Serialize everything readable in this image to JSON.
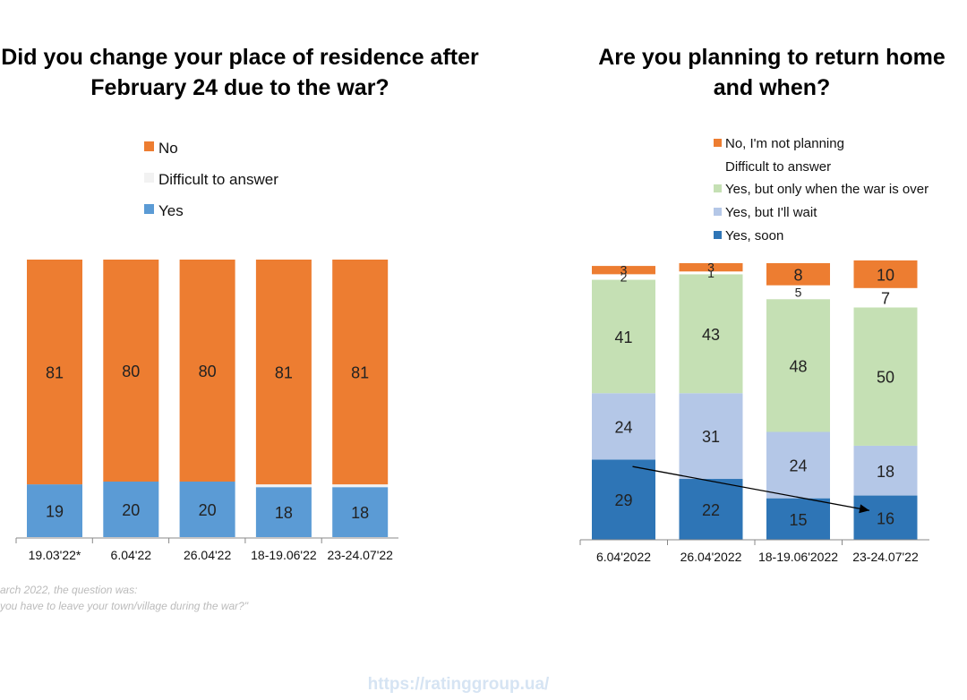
{
  "colors": {
    "no": "#ED7D31",
    "difficult": "#F2F2F2",
    "yes": "#5B9BD5",
    "not_planning": "#ED7D31",
    "difficult_right": "#FFFFFF",
    "after_war": "#C5E0B4",
    "wait": "#B4C7E7",
    "soon": "#2E75B6"
  },
  "footnote": {
    "line1": "arch 2022, the question was:",
    "line2": "you have to leave your town/village during the war?\""
  },
  "source": "https://ratinggroup.ua/",
  "chart_data": [
    {
      "type": "bar",
      "stacked": true,
      "title_lines": [
        "Did you change your place of residence after",
        "February 24 due to the war?"
      ],
      "categories": [
        "19.03'22*",
        "6.04'22",
        "26.04'22",
        "18-19.06'22",
        "23-24.07'22"
      ],
      "legend_order": [
        "No",
        "Difficult to answer",
        "Yes"
      ],
      "series": [
        {
          "name": "Yes",
          "values": [
            19,
            20,
            20,
            18,
            18
          ],
          "labels": [
            "19",
            "20",
            "20",
            "18",
            "18"
          ]
        },
        {
          "name": "Difficult to answer",
          "values": [
            0,
            0,
            0,
            1,
            1
          ],
          "labels": [
            "",
            "",
            "",
            "",
            ""
          ]
        },
        {
          "name": "No",
          "values": [
            81,
            80,
            80,
            81,
            81
          ],
          "labels": [
            "81",
            "80",
            "80",
            "81",
            "81"
          ]
        }
      ],
      "ylim": [
        0,
        100
      ],
      "grid": false,
      "legend_position": "top"
    },
    {
      "type": "bar",
      "stacked": true,
      "title_lines": [
        "Are you planning to return home",
        "and when?"
      ],
      "categories": [
        "6.04'2022",
        "26.04'2022",
        "18-19.06'2022",
        "23-24.07'22"
      ],
      "legend_order": [
        "No, I'm not planning",
        "Difficult to answer",
        "Yes, but only when the war is over",
        "Yes, but I'll wait",
        "Yes, soon"
      ],
      "series": [
        {
          "name": "Yes, soon",
          "values": [
            29,
            22,
            15,
            16
          ],
          "labels": [
            "29",
            "22",
            "15",
            "16"
          ]
        },
        {
          "name": "Yes, but I'll wait",
          "values": [
            24,
            31,
            24,
            18
          ],
          "labels": [
            "24",
            "31",
            "24",
            "18"
          ]
        },
        {
          "name": "Yes, but only when the war is over",
          "values": [
            41,
            43,
            48,
            50
          ],
          "labels": [
            "41",
            "43",
            "48",
            "50"
          ]
        },
        {
          "name": "Difficult to answer",
          "values": [
            2,
            1,
            5,
            7
          ],
          "labels": [
            "2",
            "1",
            "5",
            "7"
          ]
        },
        {
          "name": "No, I'm not planning",
          "values": [
            3,
            3,
            8,
            10
          ],
          "labels": [
            "3",
            "3",
            "8",
            "10"
          ]
        }
      ],
      "ylim": [
        0,
        100
      ],
      "grid": false,
      "legend_position": "top",
      "annotation": "arrow from first to last 'Yes, soon' segment"
    }
  ]
}
